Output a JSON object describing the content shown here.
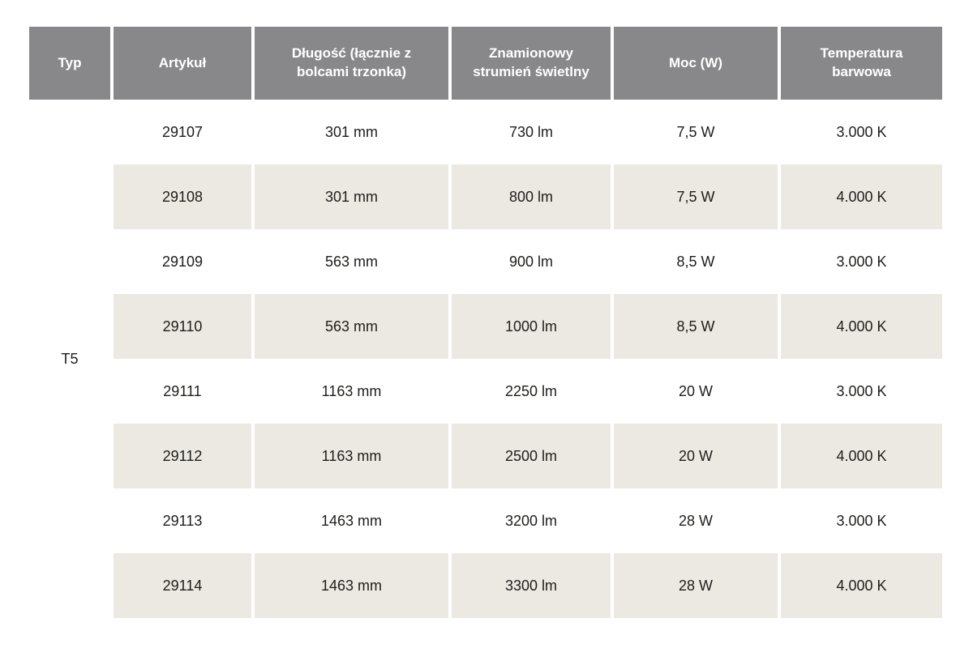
{
  "table": {
    "headers": {
      "typ": "Typ",
      "artykul": "Artykuł",
      "dlugosc": "Długość (łącznie z bolcami trzonka)",
      "strumien": "Znamionowy strumień świetlny",
      "moc": "Moc (W)",
      "temperatura": "Temperatura barwowa"
    },
    "typ_value": "T5",
    "rows": [
      {
        "artykul": "29107",
        "dlugosc": "301 mm",
        "strumien": "730 lm",
        "moc": "7,5 W",
        "temperatura": "3.000 K"
      },
      {
        "artykul": "29108",
        "dlugosc": "301 mm",
        "strumien": "800 lm",
        "moc": "7,5 W",
        "temperatura": "4.000 K"
      },
      {
        "artykul": "29109",
        "dlugosc": "563 mm",
        "strumien": "900 lm",
        "moc": "8,5 W",
        "temperatura": "3.000 K"
      },
      {
        "artykul": "29110",
        "dlugosc": "563 mm",
        "strumien": "1000 lm",
        "moc": "8,5 W",
        "temperatura": "4.000 K"
      },
      {
        "artykul": "29111",
        "dlugosc": "1163 mm",
        "strumien": "2250 lm",
        "moc": "20 W",
        "temperatura": "3.000 K"
      },
      {
        "artykul": "29112",
        "dlugosc": "1163 mm",
        "strumien": "2500 lm",
        "moc": "20 W",
        "temperatura": "4.000 K"
      },
      {
        "artykul": "29113",
        "dlugosc": "1463 mm",
        "strumien": "3200 lm",
        "moc": "28 W",
        "temperatura": "3.000 K"
      },
      {
        "artykul": "29114",
        "dlugosc": "1463 mm",
        "strumien": "3300 lm",
        "moc": "28 W",
        "temperatura": "4.000 K"
      }
    ],
    "colors": {
      "header_bg": "#88888A",
      "header_text": "#FFFFFF",
      "row_bg": "#FFFFFF",
      "row_alt_bg": "#ECE9E2",
      "body_text": "#1D1D1B"
    }
  }
}
